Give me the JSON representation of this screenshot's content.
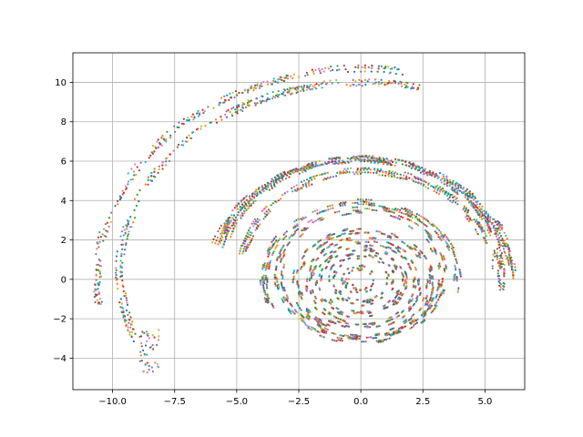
{
  "chart_data": {
    "type": "scatter",
    "title": "",
    "xlabel": "",
    "ylabel": "",
    "xlim": [
      -11.6,
      6.6
    ],
    "ylim": [
      -5.6,
      11.5
    ],
    "grid": true,
    "x_ticks": [
      -10.0,
      -7.5,
      -5.0,
      -2.5,
      0.0,
      2.5,
      5.0
    ],
    "x_tick_labels": [
      "−10.0",
      "−7.5",
      "−5.0",
      "−2.5",
      "0.0",
      "2.5",
      "5.0"
    ],
    "y_ticks": [
      -4,
      -2,
      0,
      2,
      4,
      6,
      8,
      10
    ],
    "y_tick_labels": [
      "−4",
      "−2",
      "0",
      "2",
      "4",
      "6",
      "8",
      "10"
    ],
    "marker_size": 1.6,
    "colors": [
      "#1f77b4",
      "#ff7f0e",
      "#2ca02c",
      "#d62728",
      "#9467bd",
      "#8c564b",
      "#e377c2",
      "#7f7f7f",
      "#bcbd22",
      "#17becf"
    ],
    "rings": [
      {
        "radius": 0.6,
        "center": [
          0.0,
          0.0
        ],
        "theta_start_deg": 0,
        "theta_end_deg": 360,
        "count": 40
      },
      {
        "radius": 1.2,
        "center": [
          0.0,
          0.0
        ],
        "theta_start_deg": 0,
        "theta_end_deg": 360,
        "count": 70
      },
      {
        "radius": 1.7,
        "center": [
          0.0,
          -0.1
        ],
        "theta_start_deg": 0,
        "theta_end_deg": 360,
        "count": 90
      },
      {
        "radius": 2.2,
        "center": [
          0.1,
          -0.2
        ],
        "theta_start_deg": 0,
        "theta_end_deg": 360,
        "count": 110
      },
      {
        "radius": 2.7,
        "center": [
          0.1,
          -0.2
        ],
        "theta_start_deg": 0,
        "theta_end_deg": 360,
        "count": 130
      },
      {
        "radius": 3.3,
        "center": [
          0.0,
          0.2
        ],
        "theta_start_deg": 0,
        "theta_end_deg": 360,
        "count": 140
      },
      {
        "radius": 3.9,
        "center": [
          0.0,
          0.0
        ],
        "theta_start_deg": -10,
        "theta_end_deg": 200,
        "count": 110
      },
      {
        "radius": 5.0,
        "center": [
          0.2,
          0.5
        ],
        "theta_start_deg": 15,
        "theta_end_deg": 170,
        "count": 120
      },
      {
        "radius": 5.7,
        "center": [
          0.0,
          0.4
        ],
        "theta_start_deg": -10,
        "theta_end_deg": 165,
        "count": 160
      },
      {
        "radius": 6.1,
        "center": [
          0.0,
          0.0
        ],
        "theta_start_deg": 0,
        "theta_end_deg": 160,
        "count": 140
      },
      {
        "radius": 9.7,
        "center": [
          0.0,
          0.3
        ],
        "theta_start_deg": 75,
        "theta_end_deg": 200,
        "count": 120
      },
      {
        "radius": 10.6,
        "center": [
          0.0,
          0.1
        ],
        "theta_start_deg": 80,
        "theta_end_deg": 185,
        "count": 90
      }
    ],
    "clusters": [
      {
        "x": [
          -8.9,
          -8.1
        ],
        "y": [
          -4.8,
          -2.5
        ],
        "count": 45
      },
      {
        "x": [
          -10.6,
          -10.4
        ],
        "y": [
          -1.3,
          0.7
        ],
        "count": 12
      },
      {
        "x": [
          5.3,
          5.8
        ],
        "y": [
          0.5,
          3.0
        ],
        "count": 40
      }
    ]
  }
}
